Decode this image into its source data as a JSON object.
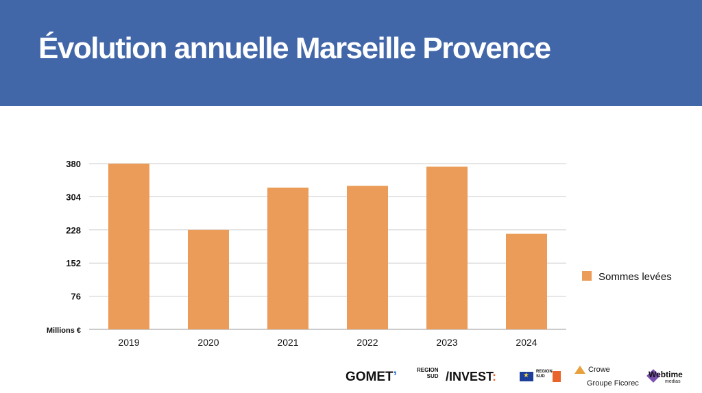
{
  "header": {
    "title": "Évolution annuelle Marseille Provence"
  },
  "chart_data": {
    "type": "bar",
    "title": "",
    "xlabel": "",
    "ylabel": "Millions €",
    "categories": [
      "2019",
      "2020",
      "2021",
      "2022",
      "2023",
      "2024"
    ],
    "series": [
      {
        "name": "Sommes levées",
        "values": [
          380,
          228,
          325,
          329,
          373,
          219
        ]
      }
    ],
    "ylim": [
      0,
      380
    ],
    "yticks": [
      "380",
      "304",
      "228",
      "152",
      "76"
    ],
    "ytick_values": [
      380,
      304,
      228,
      152,
      76
    ],
    "grid": true,
    "legend_position": "right",
    "bar_color": "#eb9c58",
    "grid_color": "#cccccc"
  },
  "footer": {
    "logos": {
      "gomet": "GOMET",
      "gomet_accent": "’",
      "region_line1": "REGION",
      "region_line2": "SUD",
      "invest": "/INVEST",
      "invest_accent": ":",
      "region2_line1": "REGION",
      "region2_line2": "SUD",
      "crowe": "Crowe",
      "ficorec": "Groupe Ficorec",
      "webtime": "Webtime",
      "medias": "medias"
    }
  }
}
